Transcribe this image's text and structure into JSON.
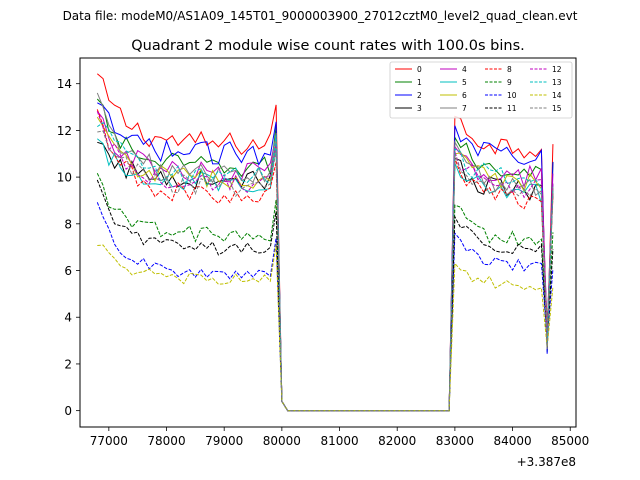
{
  "header": {
    "data_file": "Data file: modeM0/AS1A09_145T01_9000003900_27012cztM0_level2_quad_clean.evt"
  },
  "chart_data": {
    "type": "line",
    "title": "Quadrant 2 module wise count rates with 100.0s bins.",
    "xlabel": "",
    "ylabel": "",
    "x_offset_label": "+3.387e8",
    "x_tick_labels": [
      "77000",
      "78000",
      "79000",
      "80000",
      "81000",
      "82000",
      "83000",
      "84000",
      "85000"
    ],
    "y_tick_labels": [
      "0",
      "2",
      "4",
      "6",
      "8",
      "10",
      "12",
      "14"
    ],
    "xlim": [
      76500,
      85100
    ],
    "ylim": [
      -0.7,
      15.1
    ],
    "legend_position": "top-right",
    "x_bin_start": 76800,
    "x_bin_width": 100,
    "x_bin_count": 80,
    "segments": {
      "first": {
        "start_x": 76800,
        "end_x": 79900,
        "drop_value": 1.0
      },
      "zero": {
        "start_x": 80000,
        "end_x": 82900,
        "value": 0.0
      },
      "second": {
        "start_x": 83000,
        "end_x": 84600,
        "end_value": 3.0
      }
    },
    "series": [
      {
        "name": "0",
        "color": "#ff0000",
        "dash": "solid",
        "start": 14.3,
        "plateau": 11.4,
        "resume": 12.6,
        "plateau2": 11.3
      },
      {
        "name": "1",
        "color": "#008000",
        "dash": "solid",
        "start": 13.2,
        "plateau": 10.4,
        "resume": 11.7,
        "plateau2": 10.3
      },
      {
        "name": "2",
        "color": "#0000ff",
        "dash": "solid",
        "start": 13.0,
        "plateau": 11.0,
        "resume": 12.2,
        "plateau2": 11.0
      },
      {
        "name": "3",
        "color": "#000000",
        "dash": "solid",
        "start": 11.3,
        "plateau": 9.9,
        "resume": 10.8,
        "plateau2": 9.4
      },
      {
        "name": "4",
        "color": "#bf00bf",
        "dash": "solid",
        "start": 12.6,
        "plateau": 10.2,
        "resume": 11.3,
        "plateau2": 10.0
      },
      {
        "name": "5",
        "color": "#00bfbf",
        "dash": "solid",
        "start": 11.4,
        "plateau": 9.8,
        "resume": 10.6,
        "plateau2": 9.3
      },
      {
        "name": "6",
        "color": "#bfbf00",
        "dash": "solid",
        "start": 12.3,
        "plateau": 9.9,
        "resume": 11.0,
        "plateau2": 9.8
      },
      {
        "name": "7",
        "color": "#808080",
        "dash": "solid",
        "start": 13.3,
        "plateau": 10.1,
        "resume": 11.5,
        "plateau2": 9.6
      },
      {
        "name": "8",
        "color": "#ff0000",
        "dash": "dashed",
        "start": 12.6,
        "plateau": 9.2,
        "resume": 10.8,
        "plateau2": 9.0
      },
      {
        "name": "9",
        "color": "#008000",
        "dash": "dashed",
        "start": 9.9,
        "plateau": 7.5,
        "resume": 8.8,
        "plateau2": 7.3
      },
      {
        "name": "10",
        "color": "#0000ff",
        "dash": "dashed",
        "start": 8.7,
        "plateau": 5.8,
        "resume": 7.6,
        "plateau2": 6.2
      },
      {
        "name": "11",
        "color": "#000000",
        "dash": "dashed",
        "start": 9.6,
        "plateau": 6.9,
        "resume": 8.3,
        "plateau2": 6.9
      },
      {
        "name": "12",
        "color": "#bf00bf",
        "dash": "dashed",
        "start": 12.4,
        "plateau": 9.7,
        "resume": 11.1,
        "plateau2": 9.5
      },
      {
        "name": "13",
        "color": "#00bfbf",
        "dash": "dashed",
        "start": 12.6,
        "plateau": 10.0,
        "resume": 11.2,
        "plateau2": 9.9
      },
      {
        "name": "14",
        "color": "#bfbf00",
        "dash": "dashed",
        "start": 7.3,
        "plateau": 5.6,
        "resume": 6.3,
        "plateau2": 5.4
      },
      {
        "name": "15",
        "color": "#808080",
        "dash": "dashed",
        "start": 12.3,
        "plateau": 9.6,
        "resume": 11.0,
        "plateau2": 9.4
      }
    ]
  }
}
